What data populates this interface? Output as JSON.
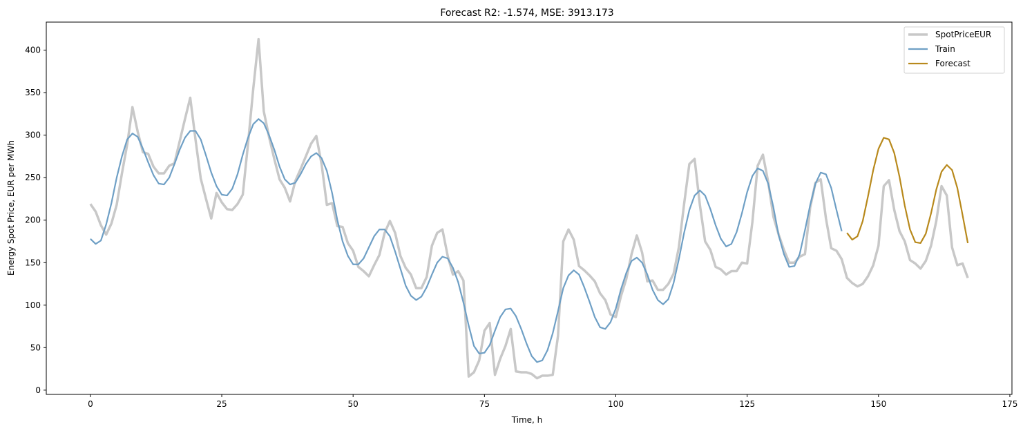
{
  "chart_data": {
    "type": "line",
    "title": "Forecast R2: -1.574, MSE: 3913.173",
    "xlabel": "Time, h",
    "ylabel": "Energy Spot Price, EUR per MWh",
    "xlim": [
      -8.4,
      175.4
    ],
    "ylim": [
      -5,
      433
    ],
    "xticks": [
      0,
      25,
      50,
      75,
      100,
      125,
      150,
      175
    ],
    "yticks": [
      0,
      50,
      100,
      150,
      200,
      250,
      300,
      350,
      400
    ],
    "grid": false,
    "legend_position": "top-right",
    "series": [
      {
        "name": "SpotPriceEUR",
        "color": "#c8c8c8",
        "x_start": 0,
        "values": [
          219,
          210,
          194,
          183,
          196,
          218,
          255,
          289,
          333,
          304,
          280,
          278,
          263,
          255,
          255,
          264,
          267,
          293,
          319,
          344,
          295,
          249,
          225,
          202,
          232,
          221,
          213,
          212,
          219,
          230,
          290,
          355,
          413,
          328,
          298,
          272,
          248,
          238,
          222,
          246,
          260,
          275,
          290,
          299,
          266,
          218,
          220,
          193,
          192,
          173,
          164,
          145,
          140,
          134,
          147,
          159,
          185,
          199,
          185,
          158,
          144,
          136,
          120,
          120,
          133,
          170,
          185,
          189,
          158,
          136,
          140,
          129,
          16,
          21,
          35,
          70,
          79,
          18,
          37,
          52,
          72,
          22,
          21,
          21,
          19,
          14,
          17,
          17,
          18,
          64,
          175,
          189,
          177,
          146,
          141,
          135,
          128,
          114,
          106,
          89,
          86,
          111,
          131,
          160,
          182,
          162,
          128,
          129,
          118,
          118,
          125,
          137,
          168,
          219,
          266,
          272,
          218,
          175,
          165,
          145,
          142,
          136,
          140,
          140,
          150,
          149,
          198,
          264,
          277,
          245,
          204,
          183,
          165,
          150,
          150,
          157,
          160,
          215,
          244,
          248,
          202,
          167,
          164,
          154,
          132,
          126,
          122,
          125,
          134,
          147,
          170,
          240,
          247,
          212,
          187,
          175,
          153,
          149,
          143,
          152,
          170,
          199,
          240,
          229,
          168,
          147,
          149,
          132
        ],
        "line_width": 3.5
      },
      {
        "name": "Train",
        "color": "#6e9fc5",
        "x_start": 0,
        "values": [
          178,
          172,
          176,
          195,
          220,
          250,
          275,
          295,
          302,
          298,
          284,
          268,
          253,
          243,
          242,
          250,
          266,
          283,
          297,
          305,
          305,
          295,
          276,
          256,
          240,
          230,
          229,
          237,
          254,
          277,
          297,
          313,
          319,
          314,
          300,
          283,
          263,
          248,
          242,
          244,
          254,
          266,
          275,
          279,
          273,
          258,
          232,
          200,
          175,
          158,
          148,
          148,
          155,
          168,
          181,
          189,
          189,
          181,
          163,
          143,
          123,
          111,
          106,
          110,
          121,
          136,
          150,
          157,
          155,
          144,
          127,
          103,
          76,
          52,
          43,
          44,
          53,
          70,
          86,
          95,
          96,
          87,
          72,
          55,
          40,
          33,
          35,
          47,
          67,
          93,
          120,
          135,
          141,
          136,
          121,
          104,
          86,
          74,
          72,
          80,
          96,
          119,
          138,
          152,
          156,
          150,
          136,
          118,
          106,
          101,
          107,
          126,
          154,
          185,
          212,
          229,
          235,
          229,
          213,
          194,
          178,
          169,
          172,
          186,
          208,
          233,
          252,
          261,
          258,
          243,
          215,
          182,
          160,
          145,
          146,
          160,
          188,
          218,
          243,
          256,
          254,
          238,
          212,
          187
        ],
        "line_width": 2.2
      },
      {
        "name": "Forecast",
        "color": "#b8891c",
        "x_start": 144,
        "values": [
          185,
          177,
          181,
          199,
          228,
          259,
          284,
          297,
          295,
          279,
          251,
          217,
          189,
          174,
          173,
          184,
          208,
          236,
          257,
          265,
          259,
          238,
          206,
          173
        ],
        "line_width": 2.2
      }
    ]
  }
}
